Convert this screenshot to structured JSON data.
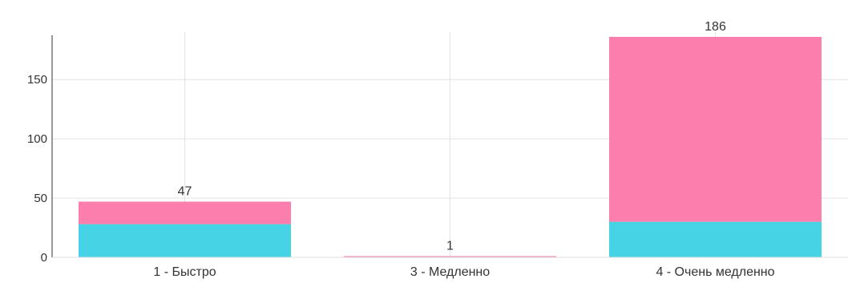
{
  "chart_data": {
    "type": "bar",
    "stacked": true,
    "categories": [
      "1 - Быстро",
      "3 - Медленно",
      "4 - Очень медленно"
    ],
    "series": [
      {
        "values": [
          28,
          0,
          30
        ],
        "color": "#45d3e5"
      },
      {
        "values": [
          19,
          1,
          156
        ],
        "color": "#fb7eac"
      }
    ],
    "totals": [
      "47",
      "1",
      "186"
    ],
    "y_ticks": [
      "0",
      "50",
      "100",
      "150"
    ],
    "ylim": [
      0,
      186
    ],
    "grid": true,
    "title": "",
    "xlabel": "",
    "ylabel": ""
  }
}
